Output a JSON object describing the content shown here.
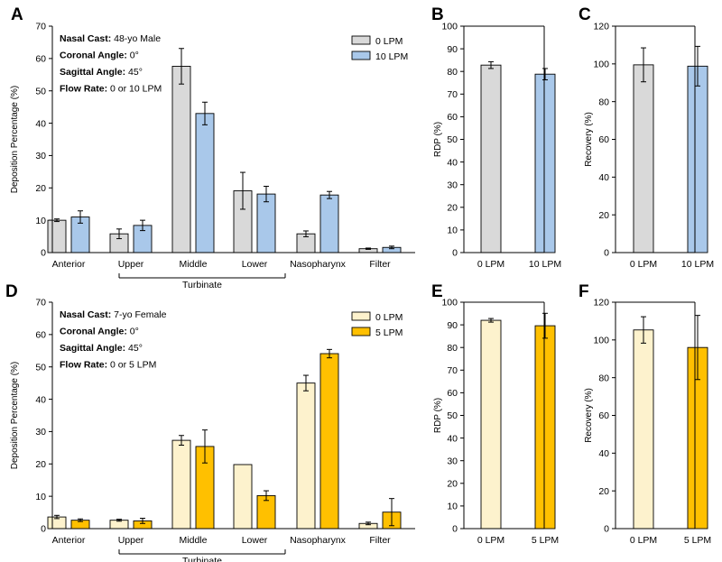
{
  "chart_data": [
    {
      "panel": "A",
      "type": "bar",
      "ylabel": "Deposition Percentage (%)",
      "ylim": [
        0,
        70
      ],
      "yticks": [
        0,
        10,
        20,
        30,
        40,
        50,
        60,
        70
      ],
      "categories": [
        "Anterior",
        "Upper",
        "Middle",
        "Lower",
        "Nasopharynx",
        "Filter"
      ],
      "group_label": "Turbinate",
      "annotations": [
        {
          "label": "Nasal Cast:",
          "value": " 48-yo Male"
        },
        {
          "label": "Coronal Angle:",
          "value": " 0°"
        },
        {
          "label": "Sagittal Angle:",
          "value": " 45°"
        },
        {
          "label": "Flow Rate:",
          "value": " 0 or 10 LPM"
        }
      ],
      "legend_position": "top-right",
      "series": [
        {
          "name": "0 LPM",
          "color": "#d9d9d9",
          "values": [
            10,
            5.8,
            57.6,
            19.1,
            5.8,
            1.2
          ],
          "errors": [
            0.4,
            1.5,
            5.5,
            5.7,
            0.9,
            0.2
          ]
        },
        {
          "name": "10 LPM",
          "color": "#a9c8ea",
          "values": [
            11,
            8.4,
            43,
            18.1,
            17.8,
            1.6
          ],
          "errors": [
            1.9,
            1.6,
            3.5,
            2.4,
            1.1,
            0.4
          ]
        }
      ]
    },
    {
      "panel": "B",
      "type": "bar",
      "ylabel": "RDP (%)",
      "ylim": [
        0,
        100
      ],
      "yticks": [
        0,
        10,
        20,
        30,
        40,
        50,
        60,
        70,
        80,
        90,
        100
      ],
      "categories": [
        "0 LPM",
        "10 LPM"
      ],
      "colors": [
        "#d9d9d9",
        "#a9c8ea"
      ],
      "values": [
        82.8,
        78.8
      ],
      "errors": [
        1.5,
        2.5
      ]
    },
    {
      "panel": "C",
      "type": "bar",
      "ylabel": "Recovery (%)",
      "ylim": [
        0,
        120
      ],
      "yticks": [
        0,
        20,
        40,
        60,
        80,
        100,
        120
      ],
      "categories": [
        "0 LPM",
        "10 LPM"
      ],
      "colors": [
        "#d9d9d9",
        "#a9c8ea"
      ],
      "values": [
        99.5,
        98.8
      ],
      "errors": [
        9,
        10.5
      ]
    },
    {
      "panel": "D",
      "type": "bar",
      "ylabel": "Deposition Percentage (%)",
      "ylim": [
        0,
        70
      ],
      "yticks": [
        0,
        10,
        20,
        30,
        40,
        50,
        60,
        70
      ],
      "categories": [
        "Anterior",
        "Upper",
        "Middle",
        "Lower",
        "Nasopharynx",
        "Filter"
      ],
      "group_label": "Turbinate",
      "annotations": [
        {
          "label": "Nasal Cast:",
          "value": " 7-yo Female"
        },
        {
          "label": "Coronal Angle:",
          "value": " 0°"
        },
        {
          "label": "Sagittal Angle:",
          "value": " 45°"
        },
        {
          "label": "Flow Rate:",
          "value": " 0 or 5 LPM"
        }
      ],
      "legend_position": "top-right",
      "series": [
        {
          "name": "0 LPM",
          "color": "#fdf2cd",
          "values": [
            3.6,
            2.6,
            27.3,
            19.8,
            45,
            1.6
          ],
          "errors": [
            0.5,
            0.3,
            1.5,
            0,
            2.4,
            0.4
          ]
        },
        {
          "name": "5 LPM",
          "color": "#ffc000",
          "values": [
            2.6,
            2.4,
            25.4,
            10.2,
            54.1,
            5.1
          ],
          "errors": [
            0.4,
            0.8,
            5.1,
            1.5,
            1.3,
            4.2
          ]
        }
      ]
    },
    {
      "panel": "E",
      "type": "bar",
      "ylabel": "RDP (%)",
      "ylim": [
        0,
        100
      ],
      "yticks": [
        0,
        10,
        20,
        30,
        40,
        50,
        60,
        70,
        80,
        90,
        100
      ],
      "categories": [
        "0 LPM",
        "5 LPM"
      ],
      "colors": [
        "#fdf2cd",
        "#ffc000"
      ],
      "values": [
        92,
        89.6
      ],
      "errors": [
        0.8,
        5.5
      ]
    },
    {
      "panel": "F",
      "type": "bar",
      "ylabel": "Recovery (%)",
      "ylim": [
        0,
        120
      ],
      "yticks": [
        0,
        20,
        40,
        60,
        80,
        100,
        120
      ],
      "categories": [
        "0 LPM",
        "5 LPM"
      ],
      "colors": [
        "#fdf2cd",
        "#ffc000"
      ],
      "values": [
        105.3,
        96
      ],
      "errors": [
        7,
        17
      ]
    }
  ]
}
